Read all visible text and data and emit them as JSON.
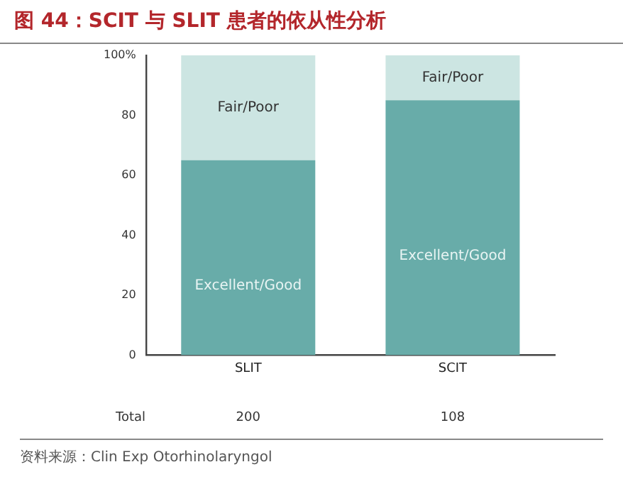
{
  "chart_data": {
    "type": "bar",
    "title": "图 44：SCIT 与 SLIT 患者的依从性分析",
    "categories": [
      "SLIT",
      "SCIT"
    ],
    "series": [
      {
        "name": "Excellent/Good",
        "color": "#68aca9",
        "values": [
          65,
          85
        ]
      },
      {
        "name": "Fair/Poor",
        "color": "#cce5e2",
        "values": [
          35,
          15
        ]
      }
    ],
    "stacked": true,
    "ylim": [
      0,
      100
    ],
    "yticks": [
      0,
      20,
      40,
      60,
      80,
      {
        "value": 100,
        "label": "100%"
      }
    ],
    "grid": false,
    "legend": false,
    "annotations": [
      "Total",
      "200",
      "108",
      "资料来源：Clin Exp Otorhinolaryngol"
    ]
  }
}
